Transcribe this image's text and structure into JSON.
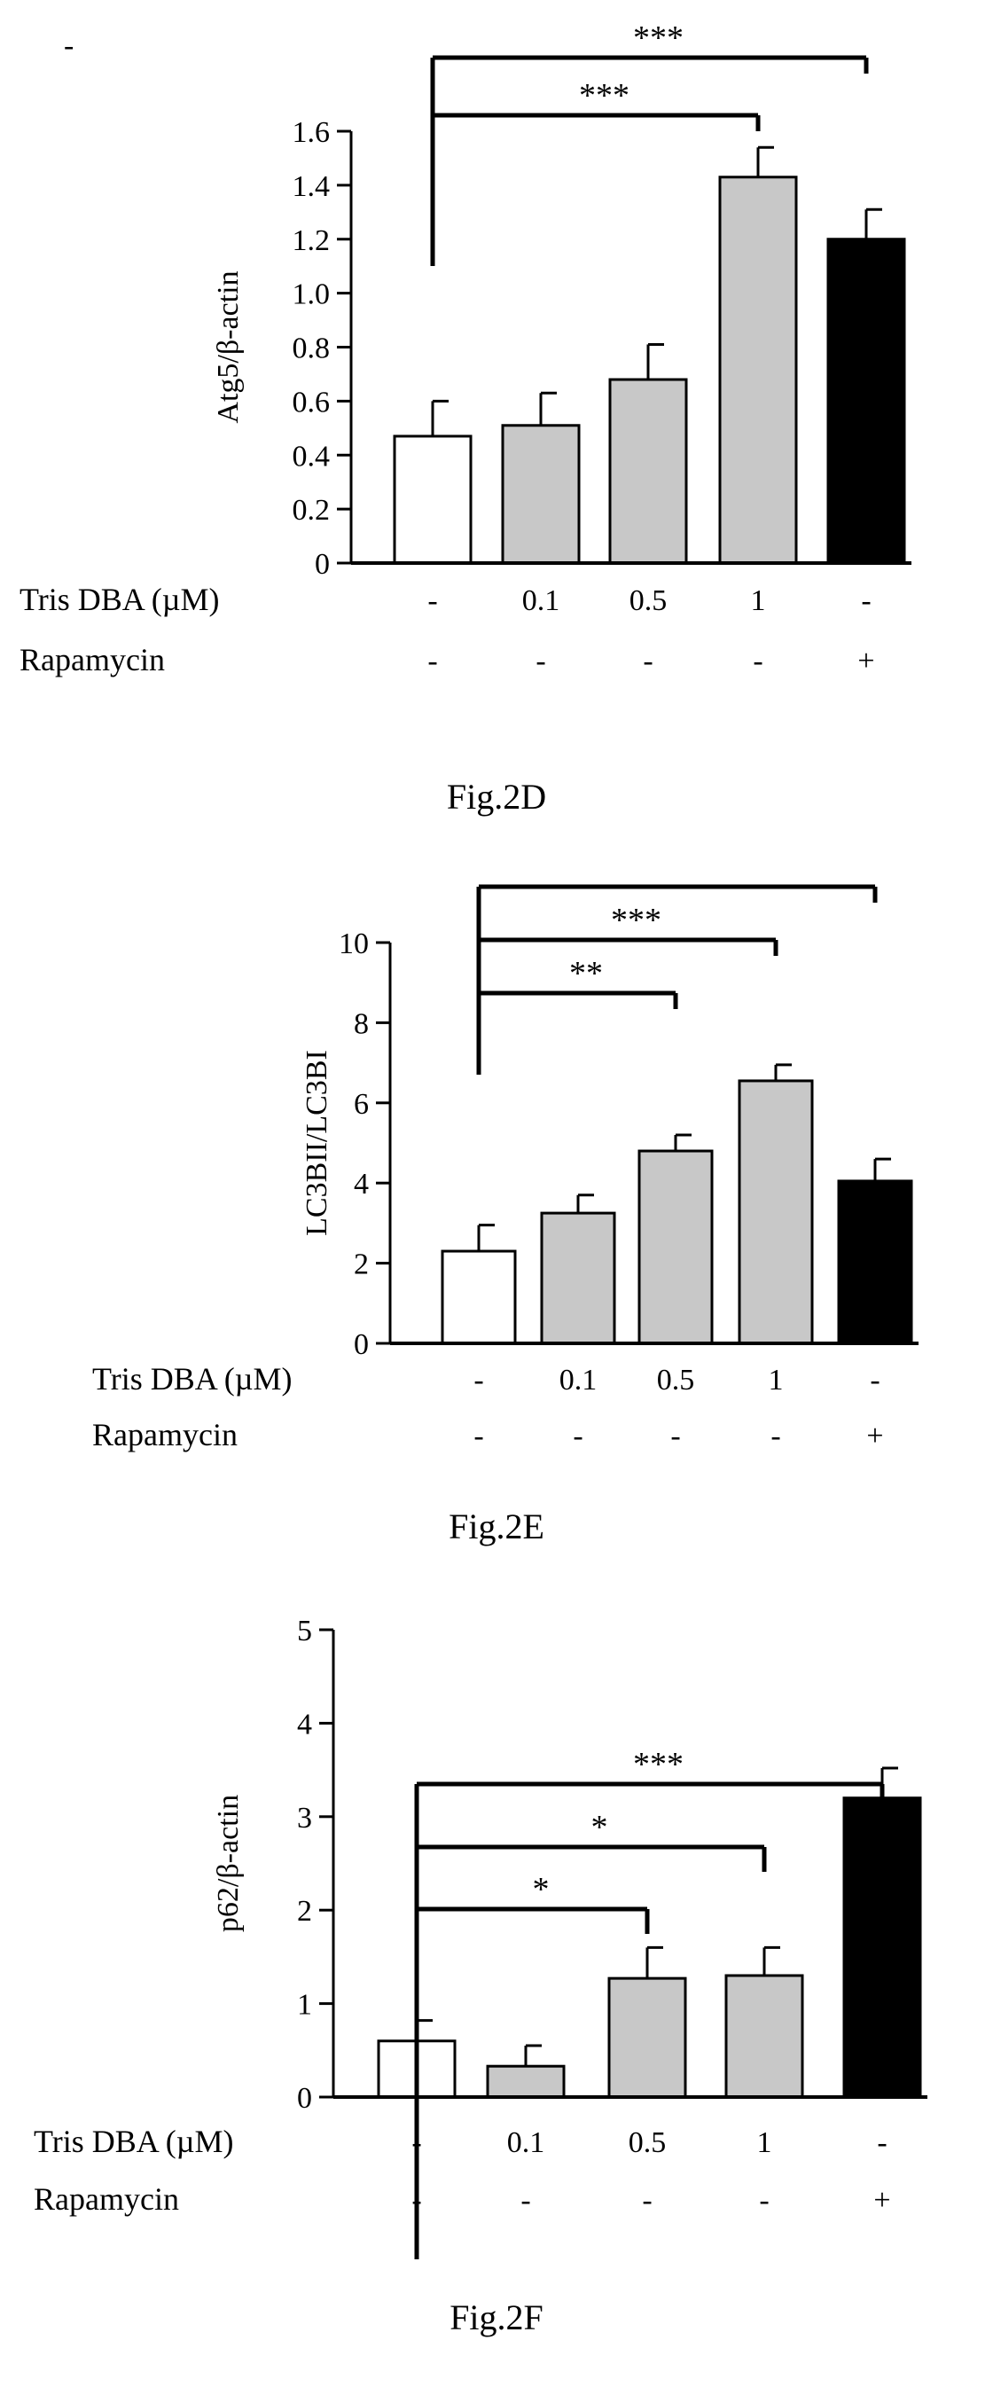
{
  "stray_mark": "-",
  "condition_rows": [
    {
      "label": "Tris DBA (µM)",
      "values": [
        "-",
        "0.1",
        "0.5",
        "1",
        "-"
      ]
    },
    {
      "label": "Rapamycin",
      "values": [
        "-",
        "-",
        "-",
        "-",
        "+"
      ]
    }
  ],
  "colors": {
    "control": "#ffffff",
    "tris": "#c8c8c8",
    "rapamycin": "#000000",
    "stroke": "#000000"
  },
  "chart_data": [
    {
      "type": "bar",
      "caption": "Fig.2D",
      "title": "",
      "xlabel": "",
      "ylabel": "Atg5/β-actin",
      "ylim": [
        0,
        1.6
      ],
      "yticks": [
        "0",
        "0.2",
        "0.4",
        "0.6",
        "0.8",
        "1.0",
        "1.2",
        "1.4",
        "1.6"
      ],
      "grid": false,
      "legend": "none",
      "values": [
        0.47,
        0.51,
        0.68,
        1.43,
        1.2
      ],
      "errors": [
        0.13,
        0.12,
        0.13,
        0.11,
        0.11
      ],
      "fills": [
        "control",
        "tris",
        "tris",
        "tris",
        "rapamycin"
      ],
      "comparisons": [
        {
          "from": 0,
          "to": 3,
          "label": "***"
        },
        {
          "from": 0,
          "to": 4,
          "label": "***"
        }
      ]
    },
    {
      "type": "bar",
      "caption": "Fig.2E",
      "title": "",
      "xlabel": "",
      "ylabel": "LC3BII/LC3BI",
      "ylim": [
        0,
        10
      ],
      "yticks": [
        "0",
        "2",
        "4",
        "6",
        "8",
        "10"
      ],
      "grid": false,
      "legend": "none",
      "values": [
        2.3,
        3.25,
        4.8,
        6.55,
        4.05
      ],
      "errors": [
        0.65,
        0.45,
        0.4,
        0.4,
        0.55
      ],
      "fills": [
        "control",
        "tris",
        "tris",
        "tris",
        "rapamycin"
      ],
      "comparisons": [
        {
          "from": 0,
          "to": 2,
          "label": "**"
        },
        {
          "from": 0,
          "to": 3,
          "label": "***"
        },
        {
          "from": 0,
          "to": 4,
          "label": ""
        }
      ]
    },
    {
      "type": "bar",
      "caption": "Fig.2F",
      "title": "",
      "xlabel": "",
      "ylabel": "p62/β-actin",
      "ylim": [
        0,
        5
      ],
      "yticks": [
        "0",
        "1",
        "2",
        "3",
        "4",
        "5"
      ],
      "grid": false,
      "legend": "none",
      "values": [
        0.6,
        0.33,
        1.27,
        1.3,
        3.2
      ],
      "errors": [
        0.22,
        0.22,
        0.33,
        0.3,
        0.32
      ],
      "fills": [
        "control",
        "tris",
        "tris",
        "tris",
        "rapamycin"
      ],
      "comparisons": [
        {
          "from": 0,
          "to": 2,
          "label": "*"
        },
        {
          "from": 0,
          "to": 3,
          "label": "*"
        },
        {
          "from": 0,
          "to": 4,
          "label": "***"
        }
      ]
    }
  ]
}
